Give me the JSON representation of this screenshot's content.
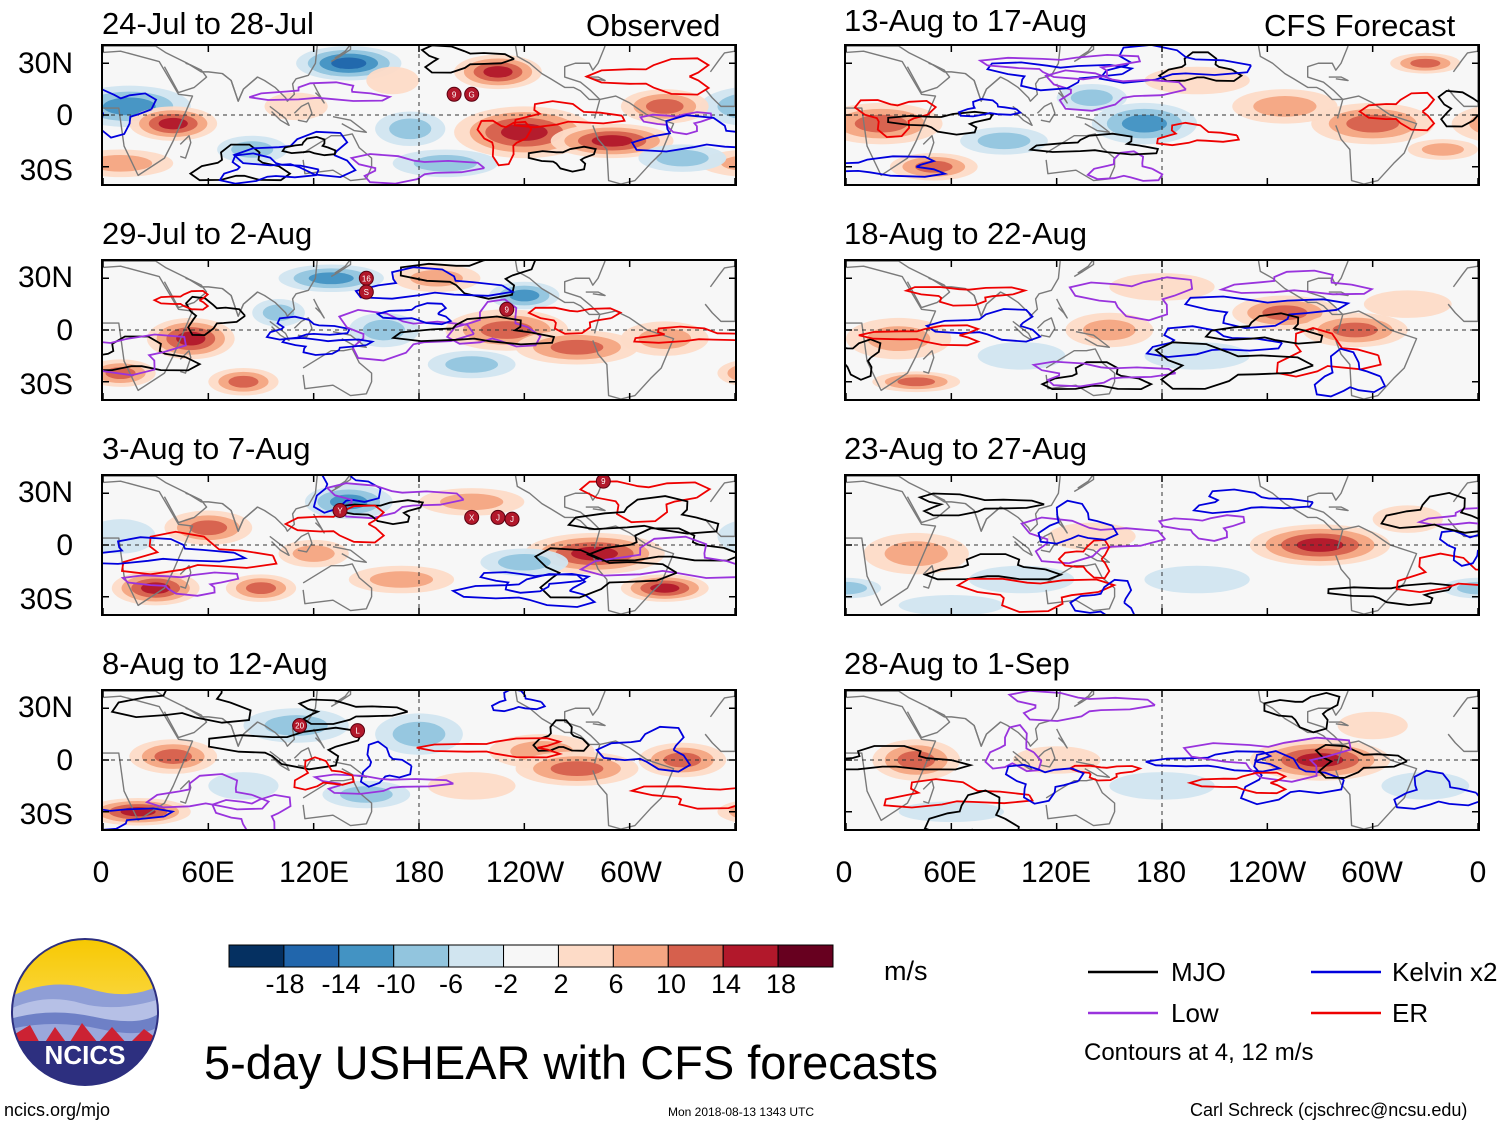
{
  "chart_data": {
    "type": "heatmap",
    "title": "5-day USHEAR with CFS forecasts",
    "units": "m/s",
    "variable": "USHEAR",
    "y_ticks": [
      "30N",
      "0",
      "30S"
    ],
    "x_ticks": [
      "0",
      "60E",
      "120E",
      "180",
      "120W",
      "60W",
      "0"
    ],
    "observed_label": "Observed",
    "forecast_label": "CFS Forecast",
    "panels": [
      {
        "title": "24-Jul to 28-Jul",
        "column": "left",
        "row": 0
      },
      {
        "title": "29-Jul to 2-Aug",
        "column": "left",
        "row": 1
      },
      {
        "title": "3-Aug to 7-Aug",
        "column": "left",
        "row": 2
      },
      {
        "title": "8-Aug to 12-Aug",
        "column": "left",
        "row": 3
      },
      {
        "title": "13-Aug to 17-Aug",
        "column": "right",
        "row": 0
      },
      {
        "title": "18-Aug to 22-Aug",
        "column": "right",
        "row": 1
      },
      {
        "title": "23-Aug to 27-Aug",
        "column": "right",
        "row": 2
      },
      {
        "title": "28-Aug to 1-Sep",
        "column": "right",
        "row": 3
      }
    ],
    "colorbar": {
      "ticks": [
        "-18",
        "-14",
        "-10",
        "-6",
        "-2",
        "2",
        "6",
        "10",
        "14",
        "18"
      ],
      "colors": [
        "#053061",
        "#2166ac",
        "#4393c3",
        "#92c5de",
        "#d1e5f0",
        "#f7f7f7",
        "#fddbc7",
        "#f4a582",
        "#d6604d",
        "#b2182b",
        "#67001f"
      ]
    },
    "legend": [
      {
        "label": "MJO",
        "color": "#000000"
      },
      {
        "label": "Kelvin x2",
        "color": "#0000dd"
      },
      {
        "label": "Low",
        "color": "#9933dd"
      },
      {
        "label": "ER",
        "color": "#ee0000"
      }
    ],
    "contour_note": "Contours at 4, 12 m/s"
  },
  "logo": {
    "text": "NCICS"
  },
  "footer": {
    "url": "ncics.org/mjo",
    "timestamp": "Mon 2018-08-13 1343 UTC",
    "author": "Carl Schreck (cjschrec@ncsu.edu)"
  },
  "storm_markers": {
    "p0": [
      "9",
      "G"
    ],
    "p1": [
      "16",
      "S",
      "9"
    ],
    "p2": [
      "Y",
      "X",
      "J",
      "J",
      "9"
    ],
    "p3": [
      "20",
      "L"
    ]
  }
}
